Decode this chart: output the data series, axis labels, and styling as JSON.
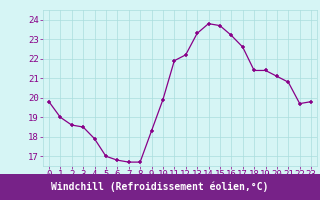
{
  "x": [
    0,
    1,
    2,
    3,
    4,
    5,
    6,
    7,
    8,
    9,
    10,
    11,
    12,
    13,
    14,
    15,
    16,
    17,
    18,
    19,
    20,
    21,
    22,
    23
  ],
  "y": [
    19.8,
    19.0,
    18.6,
    18.5,
    17.9,
    17.0,
    16.8,
    16.7,
    16.7,
    18.3,
    19.9,
    21.9,
    22.2,
    23.3,
    23.8,
    23.7,
    23.2,
    22.6,
    21.4,
    21.4,
    21.1,
    20.8,
    19.7,
    19.8
  ],
  "line_color": "#880088",
  "marker_color": "#880088",
  "bg_color": "#D6F5F5",
  "grid_color": "#AADDDD",
  "xlabel": "Windchill (Refroidissement éolien,°C)",
  "xlabel_bg": "#772288",
  "xlabel_color": "#FFFFFF",
  "ylim": [
    16.5,
    24.5
  ],
  "yticks": [
    17,
    18,
    19,
    20,
    21,
    22,
    23,
    24
  ],
  "xticks": [
    0,
    1,
    2,
    3,
    4,
    5,
    6,
    7,
    8,
    9,
    10,
    11,
    12,
    13,
    14,
    15,
    16,
    17,
    18,
    19,
    20,
    21,
    22,
    23
  ],
  "tick_fontsize": 6.5,
  "xlabel_fontsize": 7.0,
  "tick_color": "#880088"
}
